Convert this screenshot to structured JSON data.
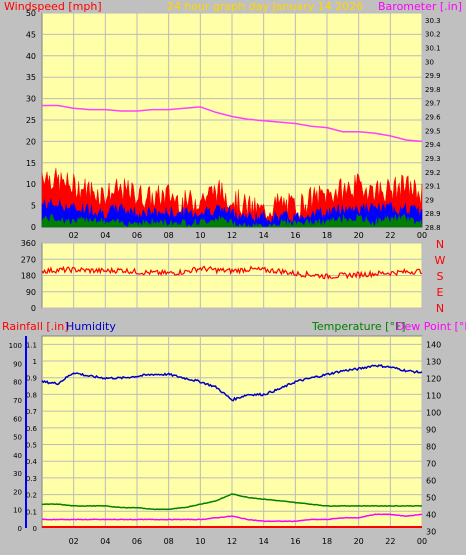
{
  "header": {
    "left_title": "Windspeed [mph]",
    "center_title": "24 hour graph day   January 14 2026",
    "right_title": "Barometer [.in]"
  },
  "colors": {
    "panel_bg": "#ffffa8",
    "page_bg": "#c0c0c0",
    "wind_gust": "#ff0000",
    "wind_avg": "#0000ff",
    "wind_low": "#008000",
    "barometer": "#ff40ff",
    "direction": "#ff0000",
    "rainfall": "#ff0000",
    "humidity": "#0000c8",
    "temperature": "#008000",
    "dewpoint": "#ff00ff",
    "center_title": "#ffd700"
  },
  "x_tick_labels": [
    "02",
    "04",
    "06",
    "08",
    "10",
    "12",
    "14",
    "16",
    "18",
    "20",
    "22",
    "00"
  ],
  "panel1": {
    "wind_y_ticks": [
      "0",
      "5",
      "10",
      "15",
      "20",
      "25",
      "30",
      "35",
      "40",
      "45",
      "50"
    ],
    "baro_y_ticks": [
      "28.8",
      "28.9",
      "29",
      "29.1",
      "29.2",
      "29.3",
      "29.4",
      "29.5",
      "29.6",
      "29.7",
      "29.8",
      "29.9",
      "30",
      "30.1",
      "30.2",
      "30.3"
    ]
  },
  "panel2": {
    "dir_y_ticks": [
      "0",
      "90",
      "180",
      "270",
      "360"
    ],
    "compass_labels": [
      "N",
      "W",
      "S",
      "E",
      "N"
    ]
  },
  "panel3": {
    "labels": {
      "rainfall": "Rainfall [.in]",
      "humidity": "Humidity",
      "temperature": "Temperature [°F]",
      "dewpoint": "Dew Point [°F]"
    },
    "humidity_ticks": [
      "0",
      "10",
      "20",
      "30",
      "40",
      "50",
      "60",
      "70",
      "80",
      "90",
      "100"
    ],
    "rain_ticks": [
      "0",
      "0.1",
      "0.2",
      "0.3",
      "0.4",
      "0.5",
      "0.6",
      "0.7",
      "0.8",
      "0.9",
      "1",
      "1.1"
    ],
    "temp_ticks": [
      "30",
      "40",
      "50",
      "60",
      "70",
      "80",
      "90",
      "100",
      "110",
      "120",
      "130",
      "140"
    ]
  },
  "chart_data": [
    {
      "type": "line",
      "title": "24 hour graph day   January 14 2026",
      "x_hours": [
        0,
        24
      ],
      "series": [
        {
          "name": "Barometer [.in]",
          "axis": "right",
          "ylim": [
            28.8,
            30.35
          ],
          "x": [
            0,
            1,
            2,
            3,
            4,
            5,
            6,
            7,
            8,
            9,
            10,
            11,
            12,
            13,
            14,
            15,
            16,
            17,
            18,
            19,
            20,
            21,
            22,
            23,
            24
          ],
          "values": [
            29.68,
            29.68,
            29.66,
            29.65,
            29.65,
            29.64,
            29.64,
            29.65,
            29.65,
            29.66,
            29.67,
            29.63,
            29.6,
            29.58,
            29.57,
            29.56,
            29.55,
            29.53,
            29.52,
            29.49,
            29.49,
            29.48,
            29.46,
            29.43,
            29.42
          ]
        },
        {
          "name": "Windspeed [mph]",
          "axis": "left",
          "ylim": [
            0,
            50
          ],
          "x": [
            0,
            1,
            2,
            3,
            4,
            5,
            6,
            7,
            8,
            9,
            10,
            11,
            12,
            13,
            14,
            15,
            16,
            17,
            18,
            19,
            20,
            21,
            22,
            23,
            24
          ],
          "gust": [
            12,
            10,
            9,
            8,
            7,
            8,
            7,
            6,
            7,
            5,
            6,
            8,
            6,
            4,
            3,
            5,
            4,
            6,
            7,
            8,
            9,
            8,
            8,
            9,
            7
          ],
          "average": [
            5,
            5,
            4,
            4,
            3,
            4,
            3,
            3,
            3,
            3,
            3,
            4,
            3,
            2,
            2,
            2,
            2,
            3,
            3,
            4,
            4,
            4,
            4,
            4,
            3
          ],
          "low": [
            2,
            2,
            1,
            2,
            1,
            1,
            1,
            1,
            1,
            1,
            1,
            2,
            1,
            0,
            0,
            1,
            1,
            1,
            1,
            2,
            2,
            1,
            2,
            2,
            1
          ]
        }
      ]
    },
    {
      "type": "scatter",
      "ylabel": "Wind direction",
      "ylim": [
        0,
        360
      ],
      "x": [
        0,
        1,
        2,
        3,
        4,
        5,
        6,
        7,
        8,
        9,
        10,
        11,
        12,
        13,
        14,
        15,
        16,
        17,
        18,
        19,
        20,
        21,
        22,
        23,
        24
      ],
      "values": [
        205,
        210,
        212,
        208,
        205,
        210,
        200,
        195,
        192,
        200,
        220,
        210,
        205,
        215,
        210,
        205,
        190,
        185,
        175,
        180,
        185,
        190,
        195,
        200,
        205
      ]
    },
    {
      "type": "line",
      "x": [
        0,
        1,
        2,
        3,
        4,
        5,
        6,
        7,
        8,
        9,
        10,
        11,
        12,
        13,
        14,
        15,
        16,
        17,
        18,
        19,
        20,
        21,
        22,
        23,
        24
      ],
      "series": [
        {
          "name": "Humidity",
          "axis": "left",
          "ylim": [
            0,
            100
          ],
          "values": [
            80,
            79,
            85,
            83,
            82,
            82,
            83,
            84,
            84,
            82,
            80,
            77,
            70,
            73,
            73,
            76,
            80,
            82,
            84,
            86,
            87,
            89,
            88,
            86,
            85
          ]
        },
        {
          "name": "Temperature [°F]",
          "axis": "right",
          "ylim": [
            32,
            145
          ],
          "values": [
            46,
            46,
            45,
            45,
            45,
            44,
            44,
            43,
            43,
            44,
            46,
            48,
            52,
            50,
            49,
            48,
            47,
            46,
            45,
            45,
            45,
            45,
            45,
            45,
            45
          ]
        },
        {
          "name": "Dew Point [°F]",
          "axis": "right",
          "ylim": [
            32,
            145
          ],
          "values": [
            37,
            37,
            37,
            37,
            37,
            37,
            37,
            37,
            37,
            37,
            37,
            38,
            39,
            37,
            36,
            36,
            36,
            37,
            37,
            38,
            38,
            40,
            40,
            39,
            40
          ]
        },
        {
          "name": "Rainfall [.in]",
          "axis": "left2",
          "ylim": [
            0,
            1.15
          ],
          "values": [
            0,
            0,
            0,
            0,
            0,
            0,
            0,
            0,
            0,
            0,
            0,
            0,
            0,
            0,
            0,
            0,
            0,
            0,
            0,
            0,
            0,
            0,
            0,
            0,
            0
          ]
        }
      ]
    }
  ]
}
